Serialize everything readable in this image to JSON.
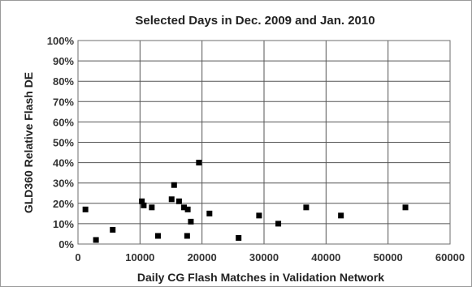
{
  "chart_data": {
    "type": "scatter",
    "title": "Selected Days in Dec. 2009 and Jan. 2010",
    "xlabel": "Daily CG Flash Matches in Validation Network",
    "ylabel": "GLD360 Relative Flash DE",
    "xlim": [
      0,
      60000
    ],
    "ylim": [
      0,
      1
    ],
    "x_ticks": [
      0,
      10000,
      20000,
      30000,
      40000,
      50000,
      60000
    ],
    "x_tick_labels": [
      "0",
      "10000",
      "20000",
      "30000",
      "40000",
      "50000",
      "60000"
    ],
    "y_ticks": [
      0,
      0.1,
      0.2,
      0.3,
      0.4,
      0.5,
      0.6,
      0.7,
      0.8,
      0.9,
      1.0
    ],
    "y_tick_labels": [
      "0%",
      "10%",
      "20%",
      "30%",
      "40%",
      "50%",
      "60%",
      "70%",
      "80%",
      "90%",
      "100%"
    ],
    "grid": true,
    "marker": "square",
    "marker_color": "#000000",
    "points": [
      {
        "x": 1200,
        "y": 0.17
      },
      {
        "x": 2900,
        "y": 0.02
      },
      {
        "x": 5600,
        "y": 0.07
      },
      {
        "x": 10300,
        "y": 0.21
      },
      {
        "x": 10600,
        "y": 0.19
      },
      {
        "x": 11900,
        "y": 0.18
      },
      {
        "x": 12900,
        "y": 0.04
      },
      {
        "x": 15100,
        "y": 0.22
      },
      {
        "x": 15500,
        "y": 0.29
      },
      {
        "x": 16300,
        "y": 0.21
      },
      {
        "x": 17100,
        "y": 0.18
      },
      {
        "x": 17600,
        "y": 0.04
      },
      {
        "x": 17700,
        "y": 0.17
      },
      {
        "x": 18200,
        "y": 0.11
      },
      {
        "x": 19500,
        "y": 0.4
      },
      {
        "x": 21200,
        "y": 0.15
      },
      {
        "x": 25900,
        "y": 0.03
      },
      {
        "x": 29200,
        "y": 0.14
      },
      {
        "x": 32300,
        "y": 0.1
      },
      {
        "x": 36800,
        "y": 0.18
      },
      {
        "x": 42400,
        "y": 0.14
      },
      {
        "x": 52800,
        "y": 0.18
      }
    ]
  }
}
